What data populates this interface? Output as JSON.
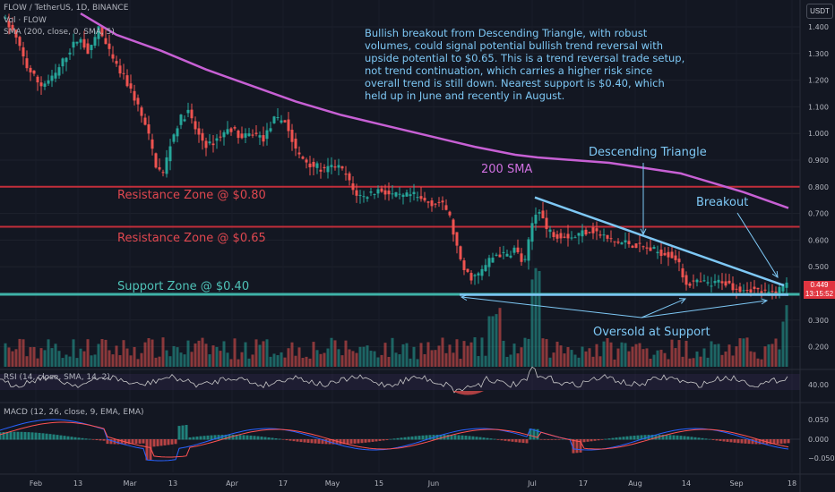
{
  "header": {
    "symbol_line": "FLOW / TetherUS, 1D, BINANCE",
    "vol_line": "Vol · FLOW",
    "sma_line": "SMA (200, close, 0, SMA, 5)",
    "rsi_line": "RSI (14, close, SMA, 14, 2)",
    "macd_line": "MACD (12, 26, close, 9, EMA, EMA)",
    "unit": "USDT"
  },
  "annotations": {
    "note": "Bullish breakout from Descending Triangle, with robust volumes, could signal potential bullish trend reversal with upside potential to $0.65. This is a trend reversal trade setup, not trend continuation, which carries a higher risk since overall trend is still down. Nearest support is $0.40, which held up in June and recently in August.",
    "resistance_080": "Resistance Zone @ $0.80",
    "resistance_065": "Resistance Zone @ $0.65",
    "support_040": "Support Zone @ $0.40",
    "sma_label": "200 SMA",
    "triangle_label": "Descending Triangle",
    "breakout_label": "Breakout",
    "oversold_label": "Oversold at Support"
  },
  "price_tag": {
    "price": "0.449",
    "countdown": "13:15:52"
  },
  "colors": {
    "up": "#26a69a",
    "down": "#ef5350",
    "sma": "#c760d4",
    "resistance": "#c22e3a",
    "support": "#3fb3a8",
    "annotation": "#7ec8f5",
    "macd": "#2962ff",
    "signal": "#ff5252",
    "rsi": "#c9c9c9"
  },
  "chart_data": {
    "type": "candlestick",
    "x_ticks": [
      "Feb",
      "13",
      "Mar",
      "13",
      "Apr",
      "17",
      "May",
      "15",
      "Jun",
      "Jul",
      "17",
      "Aug",
      "14",
      "Sep",
      "18"
    ],
    "y_ticks": [
      "1.400",
      "1.300",
      "1.200",
      "1.100",
      "1.000",
      "0.900",
      "0.800",
      "0.700",
      "0.600",
      "0.500",
      "0.400",
      "0.300",
      "0.200"
    ],
    "ylim": [
      0.15,
      1.45
    ],
    "price_path": [
      [
        0,
        1.45
      ],
      [
        15,
        1.38
      ],
      [
        30,
        1.25
      ],
      [
        45,
        1.18
      ],
      [
        60,
        1.21
      ],
      [
        75,
        1.3
      ],
      [
        88,
        1.36
      ],
      [
        100,
        1.3
      ],
      [
        110,
        1.4
      ],
      [
        118,
        1.33
      ],
      [
        128,
        1.26
      ],
      [
        140,
        1.2
      ],
      [
        152,
        1.12
      ],
      [
        165,
        1.0
      ],
      [
        175,
        0.87
      ],
      [
        182,
        0.85
      ],
      [
        190,
        0.96
      ],
      [
        200,
        1.05
      ],
      [
        210,
        1.08
      ],
      [
        220,
        1.0
      ],
      [
        232,
        0.95
      ],
      [
        245,
        0.99
      ],
      [
        258,
        1.02
      ],
      [
        270,
        0.98
      ],
      [
        282,
        1.0
      ],
      [
        295,
        0.98
      ],
      [
        305,
        1.05
      ],
      [
        318,
        1.05
      ],
      [
        325,
        0.98
      ],
      [
        332,
        0.92
      ],
      [
        340,
        0.9
      ],
      [
        350,
        0.88
      ],
      [
        362,
        0.86
      ],
      [
        375,
        0.88
      ],
      [
        385,
        0.85
      ],
      [
        395,
        0.78
      ],
      [
        405,
        0.76
      ],
      [
        415,
        0.78
      ],
      [
        425,
        0.79
      ],
      [
        435,
        0.77
      ],
      [
        448,
        0.76
      ],
      [
        460,
        0.77
      ],
      [
        470,
        0.75
      ],
      [
        480,
        0.74
      ],
      [
        490,
        0.74
      ],
      [
        500,
        0.71
      ],
      [
        508,
        0.6
      ],
      [
        515,
        0.5
      ],
      [
        525,
        0.46
      ],
      [
        535,
        0.47
      ],
      [
        545,
        0.52
      ],
      [
        555,
        0.55
      ],
      [
        565,
        0.54
      ],
      [
        575,
        0.57
      ],
      [
        585,
        0.5
      ],
      [
        595,
        0.68
      ],
      [
        602,
        0.72
      ],
      [
        610,
        0.64
      ],
      [
        620,
        0.62
      ],
      [
        630,
        0.62
      ],
      [
        640,
        0.61
      ],
      [
        650,
        0.63
      ],
      [
        660,
        0.64
      ],
      [
        670,
        0.62
      ],
      [
        680,
        0.6
      ],
      [
        690,
        0.59
      ],
      [
        700,
        0.59
      ],
      [
        710,
        0.58
      ],
      [
        720,
        0.57
      ],
      [
        730,
        0.56
      ],
      [
        745,
        0.55
      ],
      [
        755,
        0.53
      ],
      [
        765,
        0.44
      ],
      [
        775,
        0.44
      ],
      [
        785,
        0.44
      ],
      [
        795,
        0.43
      ],
      [
        805,
        0.45
      ],
      [
        815,
        0.43
      ],
      [
        825,
        0.42
      ],
      [
        835,
        0.42
      ],
      [
        845,
        0.41
      ],
      [
        855,
        0.4
      ],
      [
        862,
        0.4
      ],
      [
        868,
        0.41
      ],
      [
        874,
        0.43
      ],
      [
        878,
        0.45
      ]
    ],
    "sma_path": [
      [
        90,
        1.45
      ],
      [
        130,
        1.37
      ],
      [
        180,
        1.31
      ],
      [
        230,
        1.24
      ],
      [
        280,
        1.18
      ],
      [
        330,
        1.12
      ],
      [
        380,
        1.07
      ],
      [
        430,
        1.03
      ],
      [
        480,
        0.99
      ],
      [
        530,
        0.95
      ],
      [
        575,
        0.92
      ],
      [
        600,
        0.91
      ],
      [
        640,
        0.9
      ],
      [
        680,
        0.89
      ],
      [
        720,
        0.87
      ],
      [
        760,
        0.85
      ],
      [
        800,
        0.81
      ],
      [
        830,
        0.78
      ],
      [
        855,
        0.75
      ],
      [
        880,
        0.72
      ]
    ],
    "resistance_levels": [
      0.8,
      0.65
    ],
    "support_level": 0.4,
    "triangle_upper": [
      [
        597,
        0.76
      ],
      [
        875,
        0.43
      ]
    ],
    "triangle_lower": [
      [
        513,
        0.395
      ],
      [
        880,
        0.395
      ]
    ],
    "rsi_yticks": [
      "40.00"
    ],
    "macd_yticks": [
      "0.050",
      "0.000",
      "−0.050"
    ]
  }
}
